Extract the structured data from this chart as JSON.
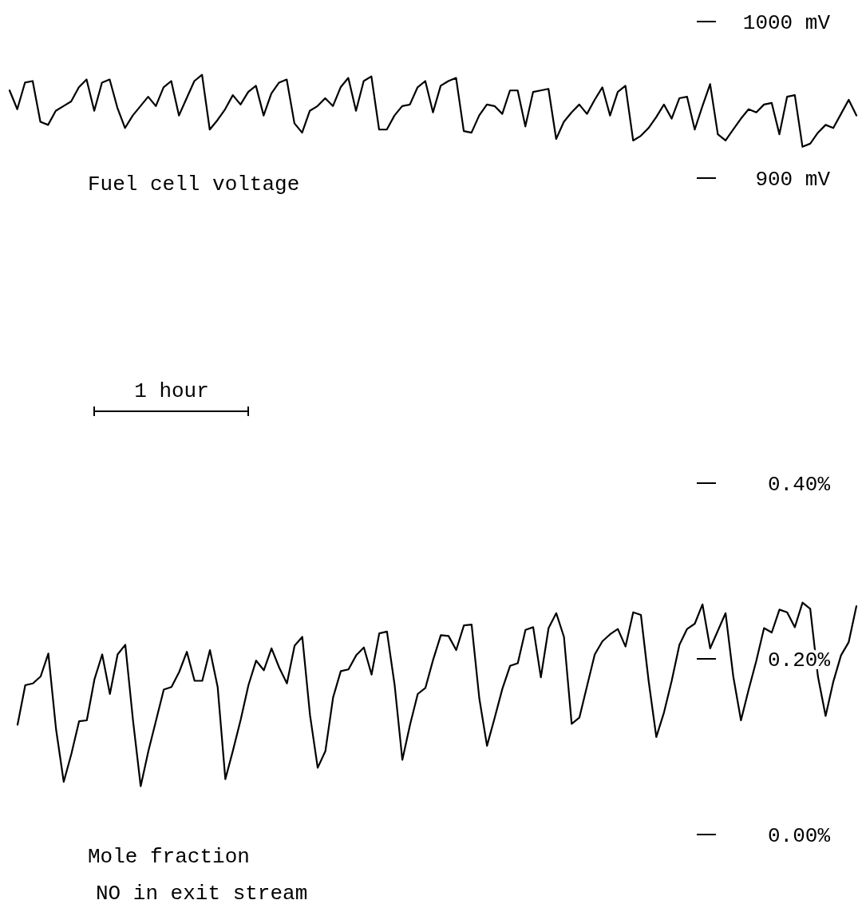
{
  "chart_data": [
    {
      "type": "line",
      "title": "Fuel cell voltage",
      "annotations": [
        "1 hour"
      ],
      "categories": [
        null,
        null,
        null,
        null,
        null,
        null,
        null,
        null,
        null,
        null,
        null,
        null,
        null,
        null,
        null,
        null,
        null,
        null,
        null,
        null,
        null,
        null,
        null,
        null,
        null,
        null,
        null,
        null,
        null,
        null,
        null,
        null,
        null,
        null,
        null,
        null,
        null,
        null,
        null,
        null,
        null,
        null,
        null,
        null,
        null,
        null,
        null,
        null,
        null,
        null,
        null,
        null,
        null,
        null,
        null,
        null,
        null,
        null,
        null,
        null,
        null,
        null,
        null,
        null,
        null,
        null,
        null,
        null,
        null,
        null,
        null,
        null,
        null,
        null,
        null,
        null,
        null,
        null,
        null,
        null,
        null,
        null,
        null,
        null,
        null,
        null,
        null,
        null,
        null,
        null,
        null,
        null,
        null,
        null,
        null,
        null,
        null,
        null,
        null,
        null,
        null,
        null,
        null,
        null,
        null,
        null,
        null,
        null,
        null,
        null,
        null
      ],
      "ylim": [
        900,
        1000
      ],
      "yticks": [
        {
          "value": 1000,
          "label": "1000 mV"
        },
        {
          "value": 900,
          "label": "900 mV"
        }
      ],
      "tick_labels": "y",
      "marker": "none",
      "line_style": "solid",
      "series": [
        {
          "color": "#000000",
          "values": [
            956,
            944,
            961,
            962,
            936,
            934,
            943,
            946,
            949,
            958,
            963,
            943,
            961,
            963,
            945,
            932,
            940,
            946,
            952,
            946,
            958,
            962,
            940,
            951,
            962,
            966,
            931,
            937,
            944,
            953,
            947,
            955,
            959,
            940,
            954,
            961,
            963,
            935,
            929,
            943,
            946,
            951,
            946,
            958,
            964,
            943,
            962,
            965,
            931,
            931,
            940,
            946,
            947,
            958,
            962,
            942,
            959,
            962,
            964,
            930,
            929,
            940,
            947,
            946,
            941,
            956,
            956,
            933,
            955,
            956,
            957,
            925,
            936,
            942,
            947,
            941,
            950,
            958,
            940,
            955,
            959,
            924,
            927,
            932,
            939,
            947,
            938,
            951,
            952,
            931,
            946,
            960,
            928,
            924,
            931,
            938,
            944,
            942,
            947,
            948,
            928,
            952,
            953,
            920,
            922,
            929,
            934,
            932,
            941,
            950,
            940
          ]
        }
      ]
    },
    {
      "type": "line",
      "title": "Mole fraction",
      "subtitle": "NO in exit stream",
      "categories": [
        null,
        null,
        null,
        null,
        null,
        null,
        null,
        null,
        null,
        null,
        null,
        null,
        null,
        null,
        null,
        null,
        null,
        null,
        null,
        null,
        null,
        null,
        null,
        null,
        null,
        null,
        null,
        null,
        null,
        null,
        null,
        null,
        null,
        null,
        null,
        null,
        null,
        null,
        null,
        null,
        null,
        null,
        null,
        null,
        null,
        null,
        null,
        null,
        null,
        null,
        null,
        null,
        null,
        null,
        null,
        null,
        null,
        null,
        null,
        null,
        null,
        null,
        null,
        null,
        null,
        null,
        null,
        null,
        null,
        null,
        null,
        null,
        null,
        null,
        null,
        null,
        null,
        null,
        null,
        null,
        null,
        null,
        null,
        null,
        null,
        null,
        null,
        null,
        null,
        null,
        null,
        null,
        null,
        null,
        null,
        null,
        null,
        null,
        null,
        null,
        null,
        null,
        null,
        null,
        null,
        null,
        null,
        null,
        null,
        null
      ],
      "ylim": [
        0,
        0.4
      ],
      "yticks": [
        {
          "value": 0.4,
          "label": "0.40%"
        },
        {
          "value": 0.2,
          "label": "0.20%"
        },
        {
          "value": 0,
          "label": "0.00%"
        }
      ],
      "tick_labels": "y",
      "marker": "none",
      "line_style": "solid",
      "series": [
        {
          "color": "#000000",
          "values": [
            0.125,
            0.17,
            0.172,
            0.18,
            0.206,
            0.12,
            0.06,
            0.092,
            0.129,
            0.13,
            0.177,
            0.205,
            0.16,
            0.205,
            0.216,
            0.13,
            0.055,
            0.095,
            0.13,
            0.165,
            0.168,
            0.185,
            0.208,
            0.175,
            0.175,
            0.21,
            0.168,
            0.063,
            0.096,
            0.131,
            0.17,
            0.198,
            0.187,
            0.212,
            0.19,
            0.172,
            0.215,
            0.225,
            0.136,
            0.076,
            0.095,
            0.156,
            0.186,
            0.188,
            0.204,
            0.213,
            0.182,
            0.229,
            0.231,
            0.17,
            0.085,
            0.125,
            0.16,
            0.167,
            0.199,
            0.227,
            0.226,
            0.21,
            0.238,
            0.239,
            0.155,
            0.101,
            0.133,
            0.166,
            0.192,
            0.195,
            0.233,
            0.236,
            0.179,
            0.235,
            0.252,
            0.225,
            0.126,
            0.133,
            0.169,
            0.205,
            0.22,
            0.228,
            0.234,
            0.214,
            0.253,
            0.25,
            0.175,
            0.111,
            0.139,
            0.175,
            0.216,
            0.234,
            0.24,
            0.262,
            0.212,
            0.232,
            0.252,
            0.18,
            0.13,
            0.165,
            0.198,
            0.235,
            0.23,
            0.256,
            0.253,
            0.236,
            0.264,
            0.257,
            0.18,
            0.135,
            0.174,
            0.204,
            0.219,
            0.26
          ]
        }
      ]
    }
  ]
}
